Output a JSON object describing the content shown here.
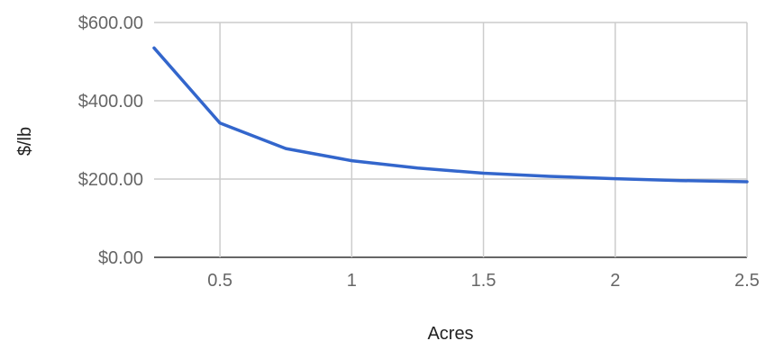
{
  "chart_data": {
    "type": "line",
    "title": "",
    "xlabel": "Acres",
    "ylabel": "$/lb",
    "xlim": [
      0.25,
      2.5
    ],
    "ylim": [
      0,
      600
    ],
    "x_ticks": [
      0.5,
      1,
      1.5,
      2,
      2.5
    ],
    "x_tick_labels": [
      "0.5",
      "1",
      "1.5",
      "2",
      "2.5"
    ],
    "y_ticks": [
      0,
      200,
      400,
      600
    ],
    "y_tick_labels": [
      "$0.00",
      "$200.00",
      "$400.00",
      "$600.00"
    ],
    "grid": true,
    "legend": "none",
    "series": [
      {
        "color": "#3366cc",
        "x": [
          0.25,
          0.5,
          0.75,
          1,
          1.25,
          1.5,
          1.75,
          2,
          2.25,
          2.5
        ],
        "y": [
          535,
          343,
          278,
          247,
          228,
          215,
          207,
          201,
          196,
          193
        ]
      }
    ]
  }
}
